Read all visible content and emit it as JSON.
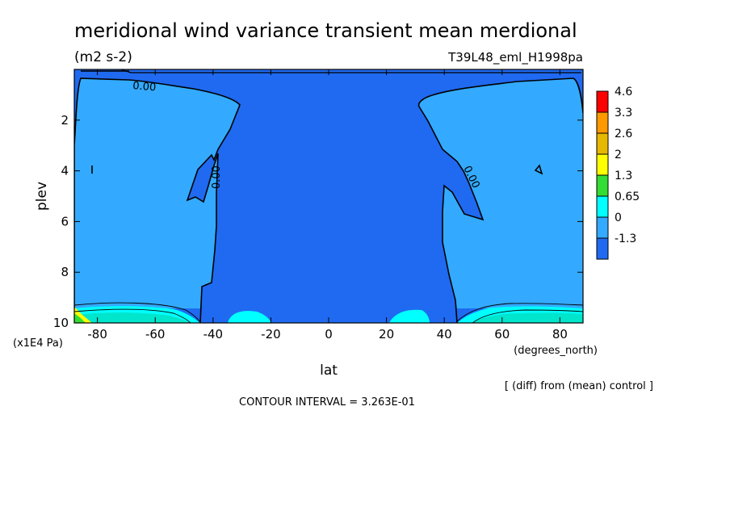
{
  "chart_data": {
    "type": "contour",
    "title": "meridional wind variance transient mean merdional",
    "units": "(m2 s-2)",
    "run_label": "T39L48_eml_H1998pa",
    "xlabel": "lat",
    "xunits": "(degrees_north)",
    "ylabel": "plev",
    "yunits": "(x1E4 Pa)",
    "xlim": [
      -88,
      88
    ],
    "ylim": [
      10,
      0
    ],
    "x_ticks": [
      "-80",
      "-60",
      "-40",
      "-20",
      "0",
      "20",
      "40",
      "60",
      "80"
    ],
    "x_tick_values": [
      -80,
      -60,
      -40,
      -20,
      0,
      20,
      40,
      60,
      80
    ],
    "y_ticks": [
      "2",
      "4",
      "6",
      "8",
      "10"
    ],
    "y_tick_values": [
      2,
      4,
      6,
      8,
      10
    ],
    "colorbar": {
      "labels": [
        "4.6",
        "3.3",
        "2.6",
        "2",
        "1.3",
        "0.65",
        "0",
        "-1.3"
      ],
      "colors": [
        "#ff0000",
        "#ff9900",
        "#e6b800",
        "#ffff00",
        "#33dd33",
        "#00ffff",
        "#33aaff",
        "#1f6af0"
      ]
    },
    "contour_labels": [
      "0.00",
      "0.00",
      "0.00"
    ],
    "diff_note": "[ (diff) from (mean) control ]",
    "contour_interval": "CONTOUR INTERVAL = 3.263E-01",
    "region_colors": {
      "negative": "#1f6af0",
      "positive_low": "#33aaff",
      "mid": "#00ffff",
      "mid2": "#00e5cc",
      "high": "#33dd33",
      "higher": "#ffff00"
    }
  }
}
